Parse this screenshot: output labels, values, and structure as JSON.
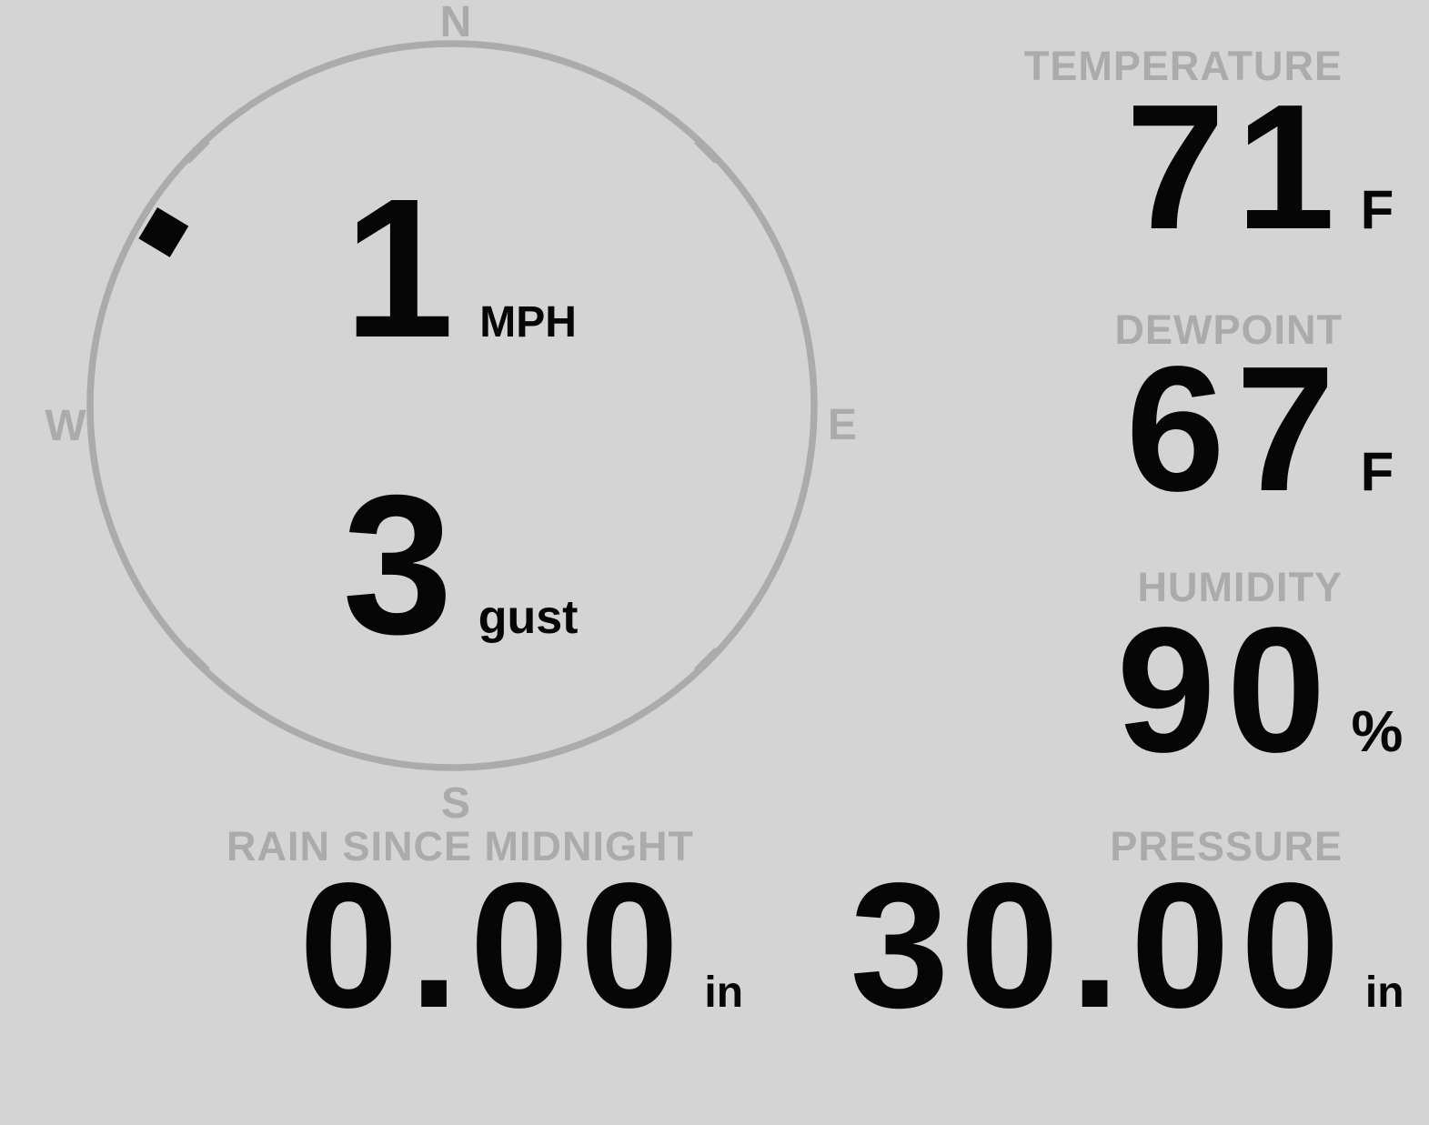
{
  "colors": {
    "background": "#d4d4d4",
    "muted_gray": "#ababab",
    "value_black": "#060606"
  },
  "wind": {
    "compass": {
      "north": "N",
      "east": "E",
      "south": "S",
      "west": "W",
      "direction_deg": 301
    },
    "speed": {
      "value": "1",
      "unit": "MPH"
    },
    "gust": {
      "value": "3",
      "unit": "gust"
    }
  },
  "temperature": {
    "label": "TEMPERATURE",
    "value": "71",
    "unit": "F"
  },
  "dewpoint": {
    "label": "DEWPOINT",
    "value": "67",
    "unit": "F"
  },
  "humidity": {
    "label": "HUMIDITY",
    "value": "90",
    "unit": "%"
  },
  "rain": {
    "label": "RAIN SINCE MIDNIGHT",
    "value": "0.00",
    "unit": "in"
  },
  "pressure": {
    "label": "PRESSURE",
    "value": "30.00",
    "unit": "in"
  }
}
